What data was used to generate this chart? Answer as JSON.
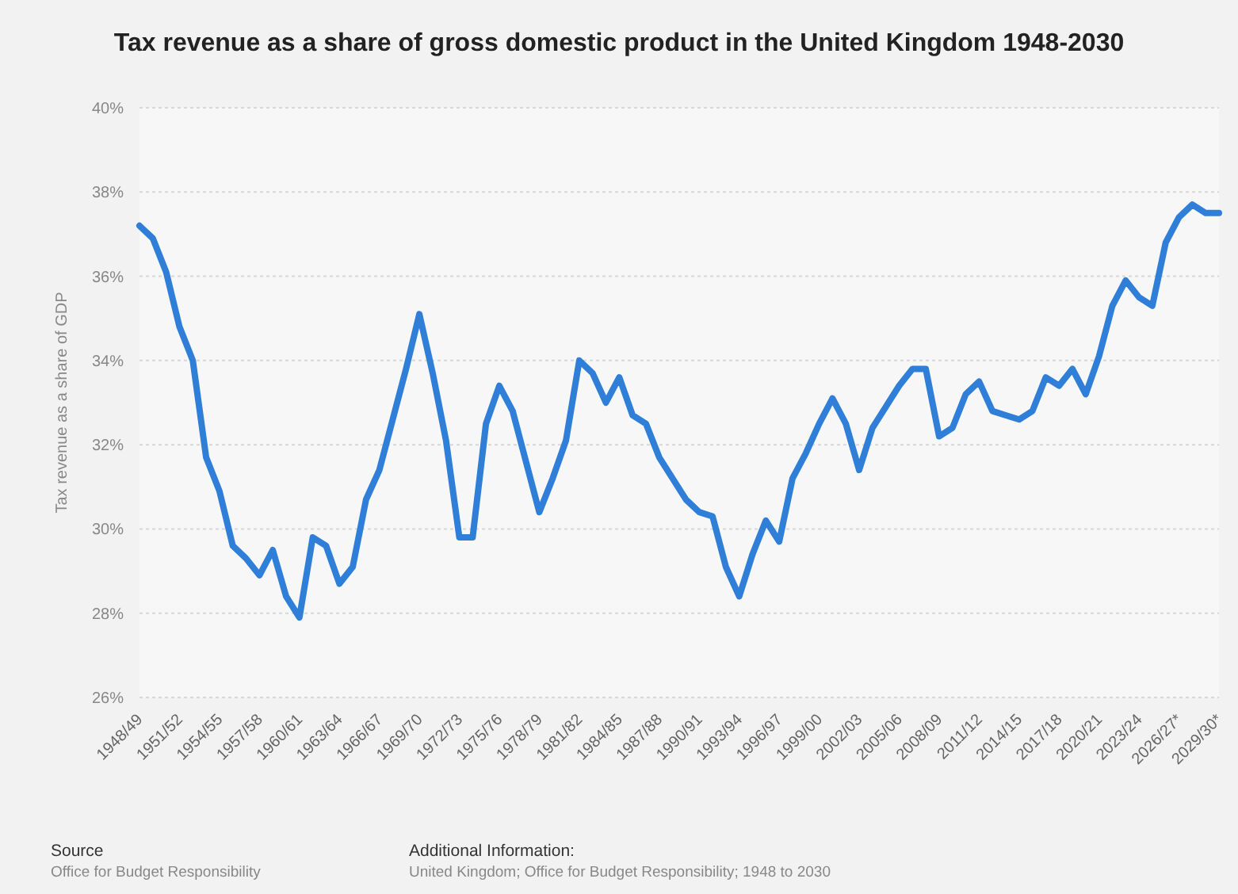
{
  "chart_data": {
    "type": "line",
    "title": "Tax revenue as a share of gross domestic product in the United Kingdom 1948-2030",
    "ylabel": "Tax revenue as a share of GDP",
    "categories": [
      "1948/49",
      null,
      null,
      "1951/52",
      null,
      null,
      "1954/55",
      null,
      null,
      "1957/58",
      null,
      null,
      "1960/61",
      null,
      null,
      "1963/64",
      null,
      null,
      "1966/67",
      null,
      null,
      "1969/70",
      null,
      null,
      "1972/73",
      null,
      null,
      "1975/76",
      null,
      null,
      "1978/79",
      null,
      null,
      "1981/82",
      null,
      null,
      "1984/85",
      null,
      null,
      "1987/88",
      null,
      null,
      "1990/91",
      null,
      null,
      "1993/94",
      null,
      null,
      "1996/97",
      null,
      null,
      "1999/00",
      null,
      null,
      "2002/03",
      null,
      null,
      "2005/06",
      null,
      null,
      "2008/09",
      null,
      null,
      "2011/12",
      null,
      null,
      "2014/15",
      null,
      null,
      "2017/18",
      null,
      null,
      "2020/21",
      null,
      null,
      "2023/24",
      null,
      null,
      "2026/27*",
      null,
      null,
      "2029/30*"
    ],
    "series": [
      {
        "color": "#2f7ed8",
        "values": [
          37.2,
          36.9,
          36.1,
          34.8,
          34.0,
          31.7,
          30.9,
          29.6,
          29.3,
          28.9,
          29.5,
          28.4,
          27.9,
          29.8,
          29.6,
          28.7,
          29.1,
          30.7,
          31.4,
          32.6,
          33.8,
          35.1,
          33.7,
          32.1,
          29.8,
          29.8,
          32.5,
          33.4,
          32.8,
          31.6,
          30.4,
          31.2,
          32.1,
          34.0,
          33.7,
          33.0,
          33.6,
          32.7,
          32.5,
          31.7,
          31.2,
          30.7,
          30.4,
          30.3,
          29.1,
          28.4,
          29.4,
          30.2,
          29.7,
          31.2,
          31.8,
          32.5,
          33.1,
          32.5,
          31.4,
          32.4,
          32.9,
          33.4,
          33.8,
          33.8,
          32.2,
          32.4,
          33.2,
          33.5,
          32.8,
          32.7,
          32.6,
          32.8,
          33.6,
          33.4,
          33.8,
          33.2,
          34.1,
          35.3,
          35.9,
          35.5,
          35.3,
          36.8,
          37.4,
          37.7,
          37.5,
          37.5
        ]
      }
    ],
    "ylim": [
      26,
      40
    ],
    "yticks": [
      {
        "value": 26,
        "label": "26%"
      },
      {
        "value": 28,
        "label": "28%"
      },
      {
        "value": 30,
        "label": "30%"
      },
      {
        "value": 32,
        "label": "32%"
      },
      {
        "value": 34,
        "label": "34%"
      },
      {
        "value": 36,
        "label": "36%"
      },
      {
        "value": 38,
        "label": "38%"
      },
      {
        "value": 40,
        "label": "40%"
      }
    ],
    "grid": "y",
    "marker": "none",
    "line_style": "solid",
    "annotations": [
      "Source",
      "Office for Budget Responsibility",
      "Additional Information:",
      "United Kingdom; Office for Budget Responsibility; 1948 to 2030"
    ]
  }
}
